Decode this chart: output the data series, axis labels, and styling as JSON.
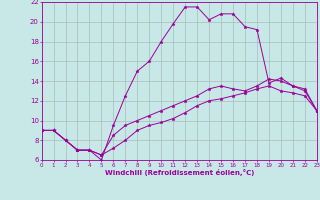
{
  "xlabel": "Windchill (Refroidissement éolien,°C)",
  "xlim": [
    0,
    23
  ],
  "ylim": [
    6,
    22
  ],
  "xticks": [
    0,
    1,
    2,
    3,
    4,
    5,
    6,
    7,
    8,
    9,
    10,
    11,
    12,
    13,
    14,
    15,
    16,
    17,
    18,
    19,
    20,
    21,
    22,
    23
  ],
  "yticks": [
    6,
    8,
    10,
    12,
    14,
    16,
    18,
    20,
    22
  ],
  "bg_color": "#c8e8e8",
  "line_color": "#990099",
  "grid_color": "#aabbbb",
  "curve1_x": [
    0,
    1,
    2,
    3,
    4,
    5,
    6,
    7,
    8,
    9,
    10,
    11,
    12,
    13,
    14,
    15,
    16,
    17,
    18,
    19,
    20,
    21,
    22,
    23
  ],
  "curve1_y": [
    9.0,
    9.0,
    8.0,
    7.0,
    7.0,
    6.5,
    7.2,
    8.0,
    9.0,
    9.5,
    9.8,
    10.2,
    10.8,
    11.5,
    12.0,
    12.2,
    12.5,
    12.8,
    13.2,
    13.5,
    13.0,
    12.8,
    12.5,
    11.0
  ],
  "curve2_x": [
    0,
    1,
    2,
    3,
    4,
    5,
    6,
    7,
    8,
    9,
    10,
    11,
    12,
    13,
    14,
    15,
    16,
    17,
    18,
    19,
    20,
    21,
    22,
    23
  ],
  "curve2_y": [
    9.0,
    9.0,
    8.0,
    7.0,
    7.0,
    6.5,
    8.5,
    9.5,
    10.0,
    10.5,
    11.0,
    11.5,
    12.0,
    12.5,
    13.2,
    13.5,
    13.2,
    13.0,
    13.5,
    14.2,
    14.0,
    13.5,
    13.2,
    11.0
  ],
  "curve3_x": [
    0,
    1,
    2,
    3,
    4,
    5,
    6,
    7,
    8,
    9,
    10,
    11,
    12,
    13,
    14,
    15,
    16,
    17,
    18,
    19,
    20,
    21,
    22,
    23
  ],
  "curve3_y": [
    9.0,
    9.0,
    8.0,
    7.0,
    7.0,
    6.0,
    9.5,
    12.5,
    15.0,
    16.0,
    18.0,
    19.8,
    21.5,
    21.5,
    20.2,
    20.8,
    20.8,
    19.5,
    19.2,
    13.8,
    14.3,
    13.5,
    13.0,
    11.0
  ]
}
